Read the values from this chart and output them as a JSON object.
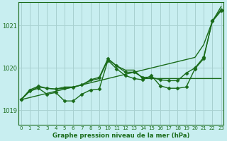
{
  "title": "Graphe pression niveau de la mer (hPa)",
  "bg_color": "#c8eef0",
  "grid_color": "#a8d0d0",
  "line_color": "#1a6b1a",
  "x_ticks": [
    0,
    1,
    2,
    3,
    4,
    5,
    6,
    7,
    8,
    9,
    10,
    11,
    12,
    13,
    14,
    15,
    16,
    17,
    18,
    19,
    20,
    21,
    22,
    23
  ],
  "y_ticks": [
    1019,
    1020,
    1021
  ],
  "ylim": [
    1018.65,
    1021.55
  ],
  "xlim": [
    -0.3,
    23.3
  ],
  "series": [
    {
      "y": [
        1019.25,
        1019.3,
        1019.35,
        1019.4,
        1019.45,
        1019.5,
        1019.55,
        1019.6,
        1019.65,
        1019.7,
        1019.75,
        1019.8,
        1019.85,
        1019.9,
        1019.95,
        1020.0,
        1020.05,
        1020.1,
        1020.15,
        1020.2,
        1020.25,
        1020.55,
        1021.1,
        1021.45
      ],
      "marker": false,
      "linewidth": 1.0
    },
    {
      "y": [
        1019.25,
        1019.45,
        1019.55,
        1019.52,
        1019.5,
        1019.55,
        1019.55,
        1019.6,
        1019.7,
        1019.75,
        1020.2,
        1020.05,
        1019.95,
        1019.95,
        1019.75,
        1019.75,
        1019.75,
        1019.75,
        1019.75,
        1019.75,
        1019.75,
        1019.75,
        1019.75,
        1019.75
      ],
      "marker": false,
      "linewidth": 1.0
    },
    {
      "y": [
        1019.25,
        1019.48,
        1019.57,
        1019.52,
        1019.5,
        1019.52,
        1019.54,
        1019.6,
        1019.72,
        1019.78,
        1020.22,
        1020.05,
        1019.9,
        1019.9,
        1019.78,
        1019.78,
        1019.72,
        1019.7,
        1019.7,
        1019.88,
        1020.0,
        1020.25,
        1021.1,
        1021.35
      ],
      "marker": true,
      "linewidth": 1.0
    },
    {
      "y": [
        1019.25,
        1019.45,
        1019.52,
        1019.38,
        1019.42,
        1019.22,
        1019.22,
        1019.38,
        1019.48,
        1019.5,
        1020.18,
        1019.98,
        1019.82,
        1019.75,
        1019.72,
        1019.82,
        1019.58,
        1019.52,
        1019.52,
        1019.55,
        1019.98,
        1020.22,
        1021.12,
        1021.38
      ],
      "marker": true,
      "linewidth": 1.0
    }
  ],
  "markersize": 2.5
}
